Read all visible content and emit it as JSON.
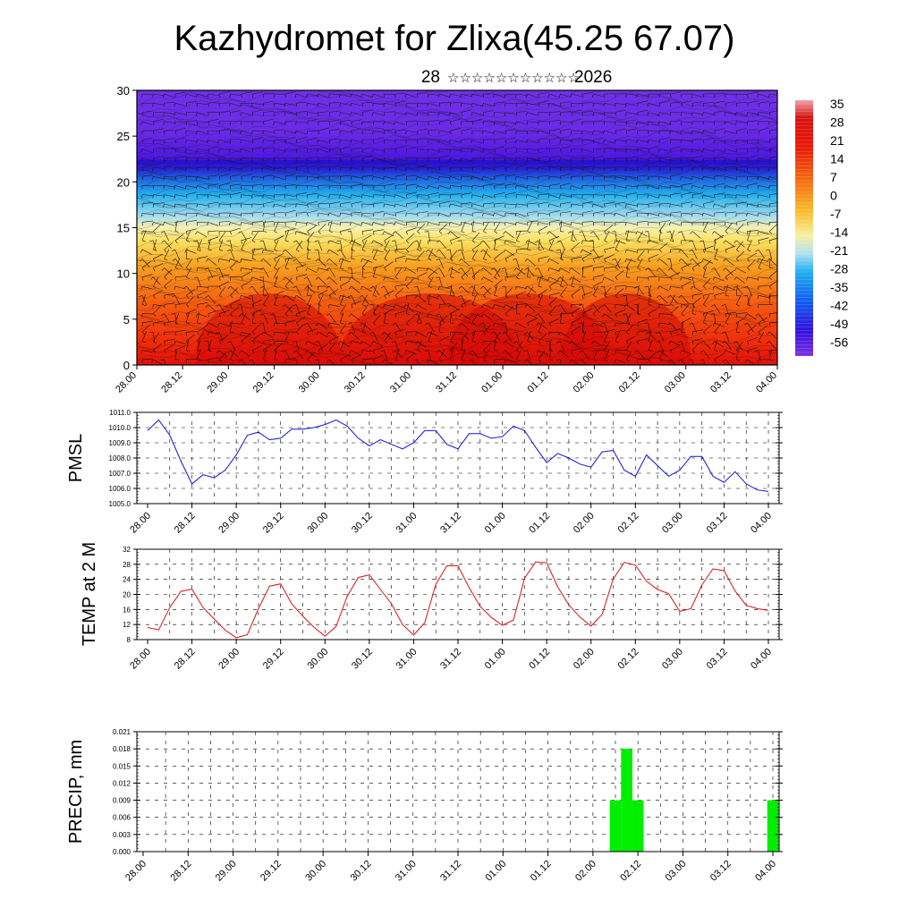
{
  "header": {
    "title": "Kazhydromet for Zlixa(45.25 67.07)",
    "subtitle_day": "28",
    "subtitle_month": "☆☆☆☆☆☆☆☆☆☆☆",
    "subtitle_year": "2026"
  },
  "time_labels": [
    "28.00",
    "28.12",
    "29.00",
    "29.12",
    "30.00",
    "30.12",
    "31.00",
    "31.12",
    "01.00",
    "01.12",
    "02.00",
    "02.12",
    "03.00",
    "03.12",
    "04.00"
  ],
  "colors": {
    "pmsl_line": "#1010e0",
    "temp_line": "#e01010",
    "precip_bar": "#00ee00",
    "frame": "#000000"
  },
  "chart_data": [
    {
      "type": "heatmap",
      "name": "vertical-temperature-wind",
      "ylim": [
        0,
        30
      ],
      "y_ticks": [
        "0",
        "5",
        "10",
        "15",
        "20",
        "25",
        "30"
      ],
      "colorbar_labels": [
        "35",
        "28",
        "21",
        "14",
        "7",
        "0",
        "-7",
        "-14",
        "-21",
        "-28",
        "-35",
        "-42",
        "-49",
        "-56"
      ],
      "x_categories": [
        "28.00",
        "28.12",
        "29.00",
        "29.12",
        "30.00",
        "30.12",
        "31.00",
        "31.12",
        "01.00",
        "01.12",
        "02.00",
        "02.12",
        "03.00",
        "03.12",
        "04.00"
      ]
    },
    {
      "type": "line",
      "ylabel": "PMSL",
      "ylim": [
        1005.0,
        1011.0
      ],
      "y_ticks": [
        "1005.0",
        "1006.0",
        "1007.0",
        "1008.0",
        "1009.0",
        "1010.0",
        "1011.0"
      ],
      "x_step_hours": 3,
      "values": [
        1009.8,
        1010.5,
        1009.5,
        1007.8,
        1006.3,
        1006.9,
        1006.7,
        1007.2,
        1008.2,
        1009.5,
        1009.7,
        1009.2,
        1009.3,
        1009.9,
        1009.9,
        1010.0,
        1010.2,
        1010.5,
        1010.1,
        1009.3,
        1008.8,
        1009.2,
        1008.9,
        1008.6,
        1009.0,
        1009.8,
        1009.8,
        1008.9,
        1008.6,
        1009.6,
        1009.6,
        1009.3,
        1009.4,
        1010.1,
        1009.8,
        1008.7,
        1007.7,
        1008.3,
        1008.0,
        1007.6,
        1007.4,
        1008.4,
        1008.5,
        1007.2,
        1006.8,
        1008.2,
        1007.5,
        1006.8,
        1007.2,
        1008.1,
        1008.1,
        1006.8,
        1006.4,
        1007.1,
        1006.3,
        1005.9,
        1005.8
      ]
    },
    {
      "type": "line",
      "ylabel": "TEMP at 2 M",
      "ylim": [
        8,
        32
      ],
      "y_ticks": [
        "8",
        "12",
        "16",
        "20",
        "24",
        "28",
        "32"
      ],
      "x_step_hours": 3,
      "values": [
        11.2,
        10.6,
        16.5,
        20.8,
        21.4,
        16.5,
        13.5,
        10.5,
        8.5,
        9.3,
        16.2,
        22.2,
        22.8,
        17.5,
        14.2,
        11.3,
        8.9,
        11.5,
        19.5,
        24.5,
        25.2,
        21.3,
        17.5,
        12.0,
        9.2,
        12.5,
        22.7,
        27.6,
        27.6,
        21.8,
        16.8,
        13.9,
        11.8,
        13.2,
        24.3,
        28.6,
        28.4,
        22.0,
        17.2,
        14.0,
        11.6,
        14.7,
        24.1,
        28.5,
        27.8,
        23.5,
        21.3,
        20.2,
        15.5,
        16.2,
        22.5,
        26.8,
        26.3,
        20.9,
        17.1,
        16.2,
        15.8
      ]
    },
    {
      "type": "bar",
      "ylabel": "PRECIP, mm",
      "ylim": [
        0,
        0.021
      ],
      "y_ticks": [
        "0.000",
        "0.003",
        "0.006",
        "0.009",
        "0.012",
        "0.015",
        "0.018",
        "0.021"
      ],
      "bars": [
        {
          "x_hours": 126,
          "value": 0.009
        },
        {
          "x_hours": 129,
          "value": 0.018
        },
        {
          "x_hours": 132,
          "value": 0.009
        },
        {
          "x_hours": 168,
          "value": 0.009
        }
      ]
    }
  ]
}
